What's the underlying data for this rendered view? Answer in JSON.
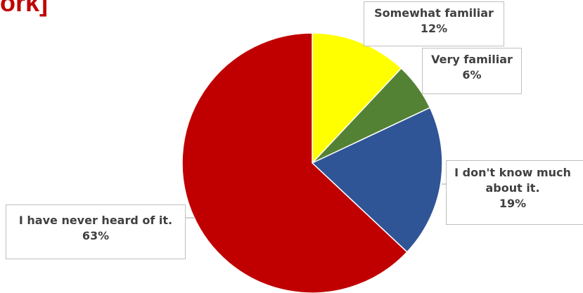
{
  "title_fragment": "ork]",
  "chart_data": {
    "type": "pie",
    "slices": [
      {
        "label": "Somewhat familiar",
        "value": 12,
        "display": "12%",
        "color": "#ffff00"
      },
      {
        "label": "Very familiar",
        "value": 6,
        "display": "6%",
        "color": "#548235"
      },
      {
        "label": "I don't know much about it.",
        "value": 19,
        "display": "19%",
        "color": "#2f5597"
      },
      {
        "label": "I have never heard of it.",
        "value": 63,
        "display": "63%",
        "color": "#c00000"
      }
    ],
    "start_angle_deg": 0,
    "direction": "clockwise"
  }
}
